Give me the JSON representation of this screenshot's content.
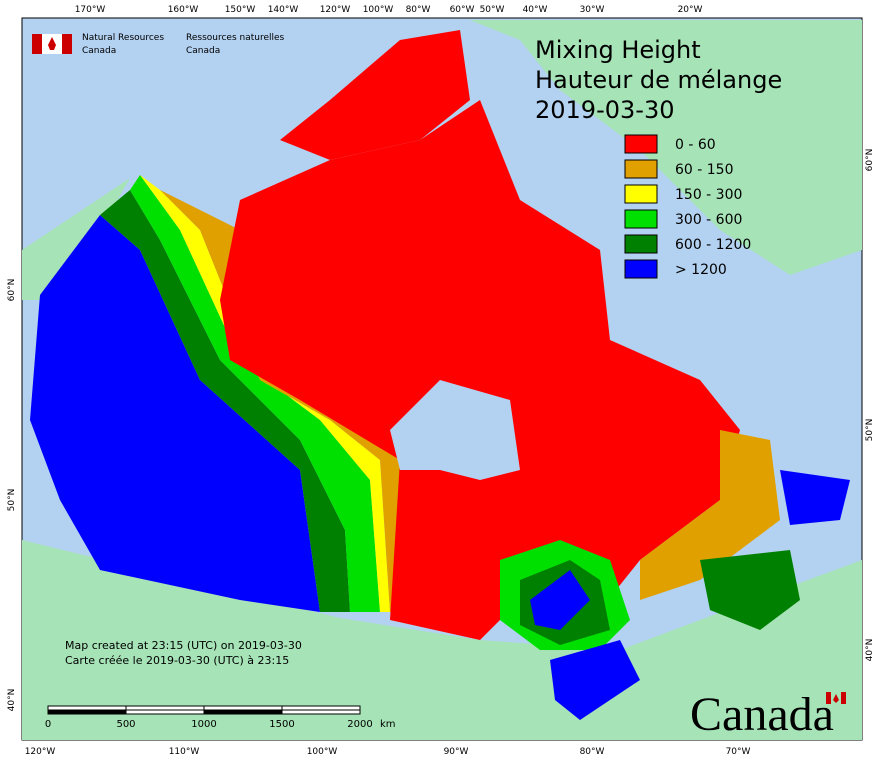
{
  "agency_en": [
    "Natural Resources",
    "Canada"
  ],
  "agency_fr": [
    "Ressources naturelles",
    "Canada"
  ],
  "title": [
    "Mixing Height",
    "Hauteur de mélange",
    "2019-03-30"
  ],
  "legend": [
    {
      "label": "0 - 60",
      "color": "#ff0000"
    },
    {
      "label": "60 - 150",
      "color": "#e0a000"
    },
    {
      "label": "150 - 300",
      "color": "#ffff00"
    },
    {
      "label": "300 - 600",
      "color": "#00e000"
    },
    {
      "label": "600 - 1200",
      "color": "#008000"
    },
    {
      "label": "> 1200",
      "color": "#0000ff"
    }
  ],
  "top_labels": [
    "170°W",
    "160°W",
    "150°W",
    "140°W",
    "120°W",
    "100°W",
    "80°W",
    "60°W",
    "50°W",
    "40°W",
    "30°W",
    "20°W"
  ],
  "bottom_labels": [
    "120°W",
    "110°W",
    "100°W",
    "90°W",
    "80°W",
    "70°W"
  ],
  "left_labels": [
    "60°N",
    "50°N",
    "40°N"
  ],
  "right_labels": [
    "60°N",
    "50°N",
    "40°N"
  ],
  "footer": [
    "Map created at 23:15 (UTC) on 2019-03-30",
    "Carte créée le 2019-03-30 (UTC) à 23:15"
  ],
  "scale": {
    "ticks": [
      0,
      500,
      1000,
      1500,
      2000
    ],
    "unit": "km"
  },
  "wordmark": "Canada"
}
